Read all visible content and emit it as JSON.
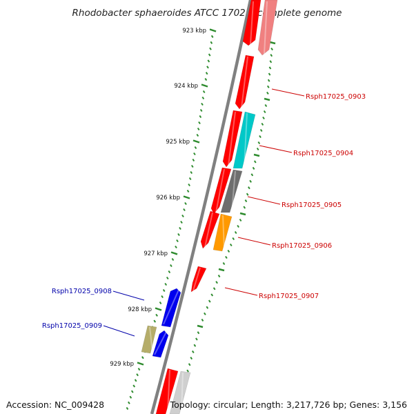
{
  "title": "Rhodobacter sphaeroides ATCC 17025, complete genome",
  "footer": {
    "accession": "Accession: NC_009428",
    "summary": "Topology: circular; Length: 3,217,726 bp; Genes: 3,156"
  },
  "ticks": [
    {
      "label": "923 kbp"
    },
    {
      "label": "924 kbp"
    },
    {
      "label": "925 kbp"
    },
    {
      "label": "926 kbp"
    },
    {
      "label": "927 kbp"
    },
    {
      "label": "928 kbp"
    },
    {
      "label": "929 kbp"
    }
  ],
  "gene_labels": [
    {
      "name": "Rsph17025_0903",
      "color": "#cc0000"
    },
    {
      "name": "Rsph17025_0904",
      "color": "#cc0000"
    },
    {
      "name": "Rsph17025_0905",
      "color": "#cc0000"
    },
    {
      "name": "Rsph17025_0906",
      "color": "#cc0000"
    },
    {
      "name": "Rsph17025_0907",
      "color": "#cc0000"
    },
    {
      "name": "Rsph17025_0908",
      "color": "#0000aa"
    },
    {
      "name": "Rsph17025_0909",
      "color": "#0000aa"
    }
  ],
  "colors": {
    "cds_red": "#ff0000",
    "cds_pink": "#f08080",
    "cds_cyan": "#00c8c8",
    "cds_grey": "#6e6e6e",
    "cds_orange": "#ff9900",
    "cds_blue": "#0000ee",
    "cds_khaki": "#b5ad6a",
    "cds_light": "#cfcfcf",
    "backbone": "#808080",
    "tick": "#2e8b2e"
  }
}
